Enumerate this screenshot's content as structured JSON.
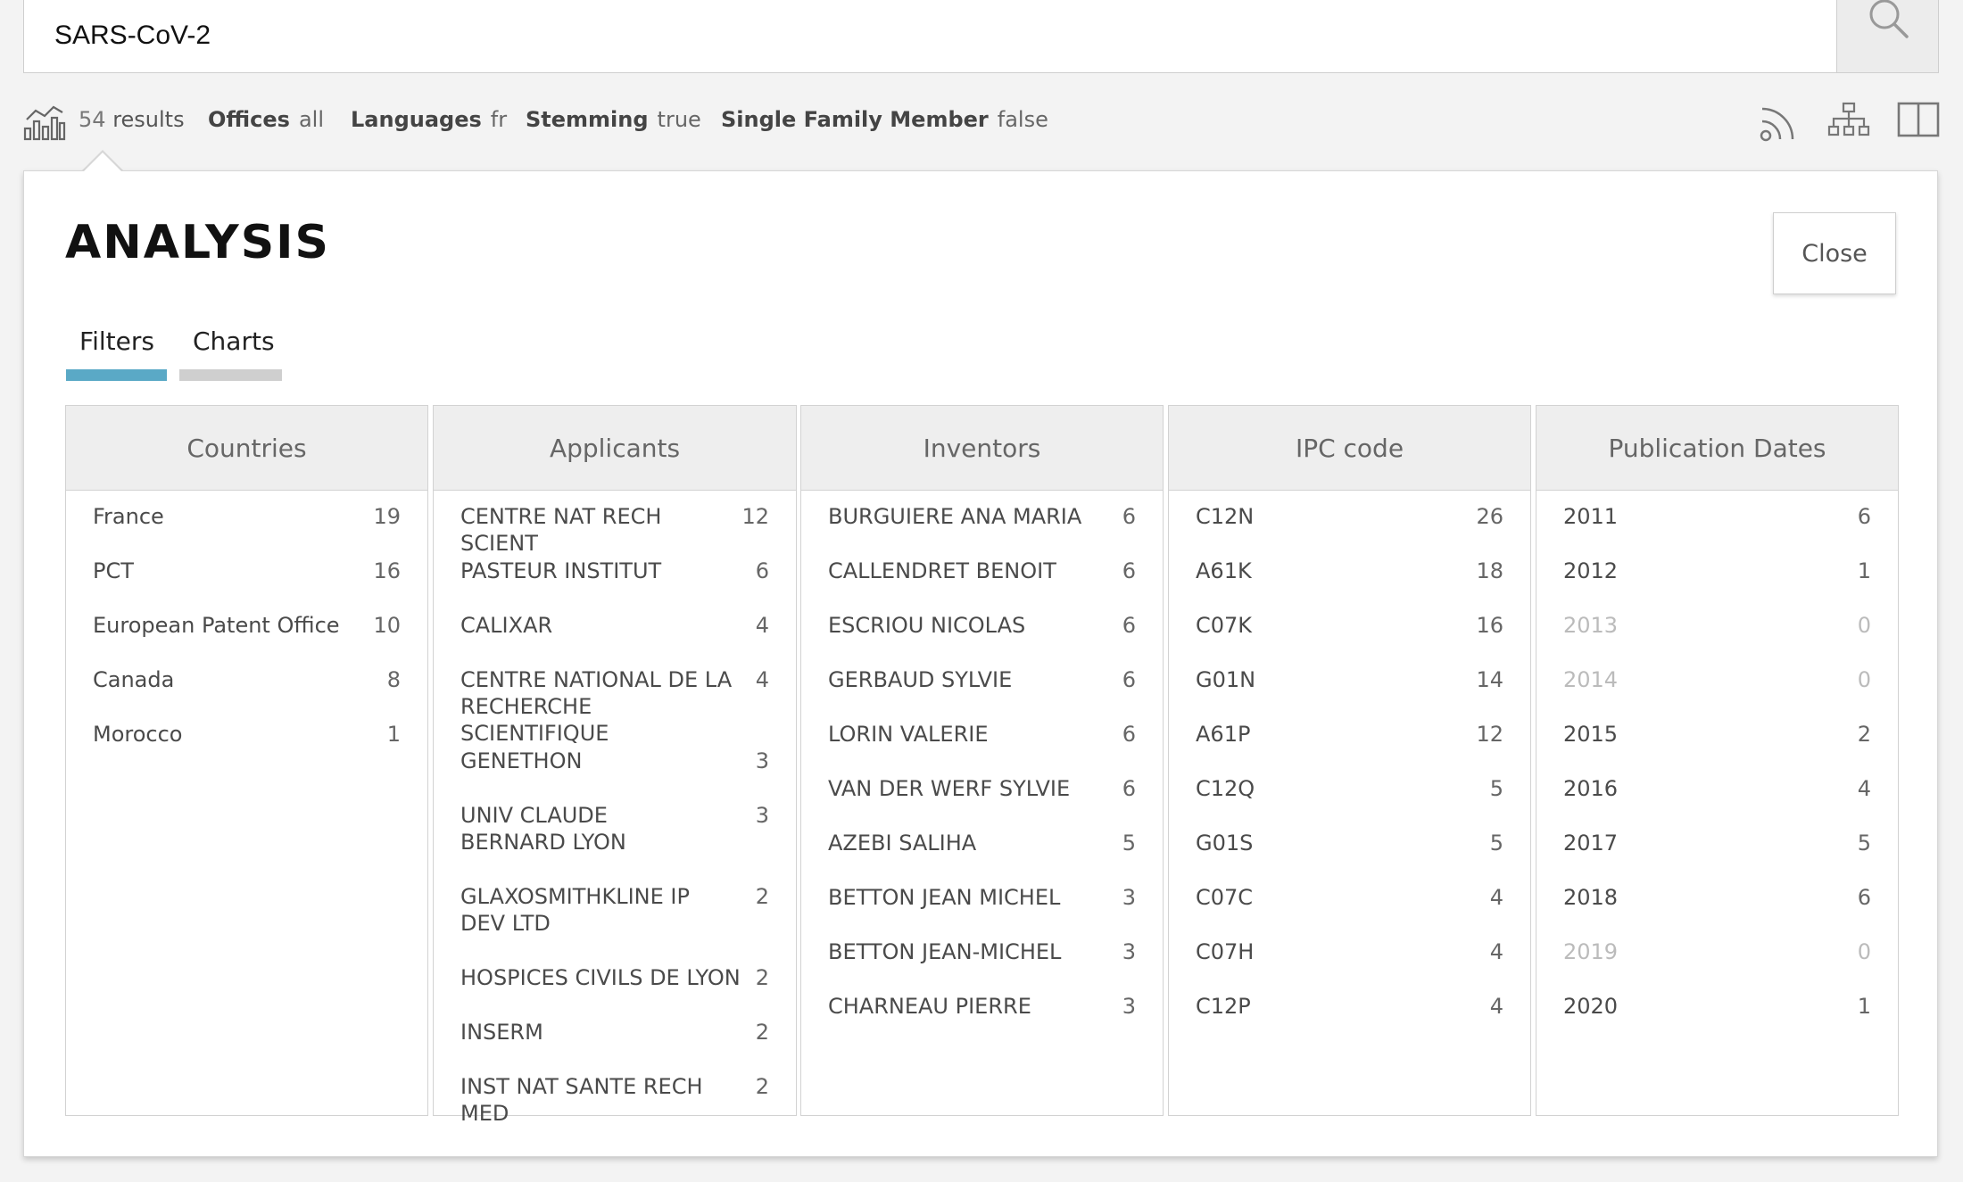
{
  "search": {
    "value": "SARS-CoV-2"
  },
  "info": {
    "results_count": "54",
    "results_label": "results",
    "offices_key": "Offices",
    "offices_val": "all",
    "languages_key": "Languages",
    "languages_val": "fr",
    "stemming_key": "Stemming",
    "stemming_val": "true",
    "sfm_key": "Single Family Member",
    "sfm_val": "false"
  },
  "panel": {
    "title": "ANALYSIS",
    "close_label": "Close",
    "tabs": [
      {
        "label": "Filters",
        "active": true,
        "color": "#5aa9c6"
      },
      {
        "label": "Charts",
        "active": false,
        "color": "#cfcfcf"
      }
    ]
  },
  "columns": [
    {
      "header": "Countries",
      "rows": [
        {
          "label": "France",
          "count": "19"
        },
        {
          "label": "PCT",
          "count": "16"
        },
        {
          "label": "European Patent Office",
          "count": "10"
        },
        {
          "label": "Canada",
          "count": "8"
        },
        {
          "label": "Morocco",
          "count": "1"
        }
      ]
    },
    {
      "header": "Applicants",
      "rows": [
        {
          "label": "CENTRE NAT RECH SCIENT",
          "count": "12"
        },
        {
          "label": "PASTEUR INSTITUT",
          "count": "6"
        },
        {
          "label": "CALIXAR",
          "count": "4"
        },
        {
          "label": "CENTRE NATIONAL DE LA RECHERCHE SCIENTIFIQUE",
          "count": "4"
        },
        {
          "label": "GENETHON",
          "count": "3"
        },
        {
          "label": "UNIV CLAUDE BERNARD LYON",
          "count": "3"
        },
        {
          "label": "GLAXOSMITHKLINE IP DEV LTD",
          "count": "2"
        },
        {
          "label": "HOSPICES CIVILS DE LYON",
          "count": "2"
        },
        {
          "label": "INSERM",
          "count": "2"
        },
        {
          "label": "INST NAT SANTE RECH MED",
          "count": "2"
        }
      ]
    },
    {
      "header": "Inventors",
      "rows": [
        {
          "label": "BURGUIERE ANA MARIA",
          "count": "6"
        },
        {
          "label": "CALLENDRET BENOIT",
          "count": "6"
        },
        {
          "label": "ESCRIOU NICOLAS",
          "count": "6"
        },
        {
          "label": "GERBAUD SYLVIE",
          "count": "6"
        },
        {
          "label": "LORIN VALERIE",
          "count": "6"
        },
        {
          "label": "VAN DER WERF SYLVIE",
          "count": "6"
        },
        {
          "label": "AZEBI SALIHA",
          "count": "5"
        },
        {
          "label": "BETTON JEAN MICHEL",
          "count": "3"
        },
        {
          "label": "BETTON JEAN-MICHEL",
          "count": "3"
        },
        {
          "label": "CHARNEAU PIERRE",
          "count": "3"
        }
      ]
    },
    {
      "header": "IPC code",
      "rows": [
        {
          "label": "C12N",
          "count": "26"
        },
        {
          "label": "A61K",
          "count": "18"
        },
        {
          "label": "C07K",
          "count": "16"
        },
        {
          "label": "G01N",
          "count": "14"
        },
        {
          "label": "A61P",
          "count": "12"
        },
        {
          "label": "C12Q",
          "count": "5"
        },
        {
          "label": "G01S",
          "count": "5"
        },
        {
          "label": "C07C",
          "count": "4"
        },
        {
          "label": "C07H",
          "count": "4"
        },
        {
          "label": "C12P",
          "count": "4"
        }
      ]
    },
    {
      "header": "Publication Dates",
      "rows": [
        {
          "label": "2011",
          "count": "6"
        },
        {
          "label": "2012",
          "count": "1"
        },
        {
          "label": "2013",
          "count": "0",
          "dim": true
        },
        {
          "label": "2014",
          "count": "0",
          "dim": true
        },
        {
          "label": "2015",
          "count": "2"
        },
        {
          "label": "2016",
          "count": "4"
        },
        {
          "label": "2017",
          "count": "5"
        },
        {
          "label": "2018",
          "count": "6"
        },
        {
          "label": "2019",
          "count": "0",
          "dim": true
        },
        {
          "label": "2020",
          "count": "1"
        }
      ]
    }
  ],
  "icons": {
    "search": "search-icon",
    "stats": "bar-chart-icon",
    "rss": "rss-icon",
    "tree": "hierarchy-icon",
    "split": "split-view-icon"
  }
}
